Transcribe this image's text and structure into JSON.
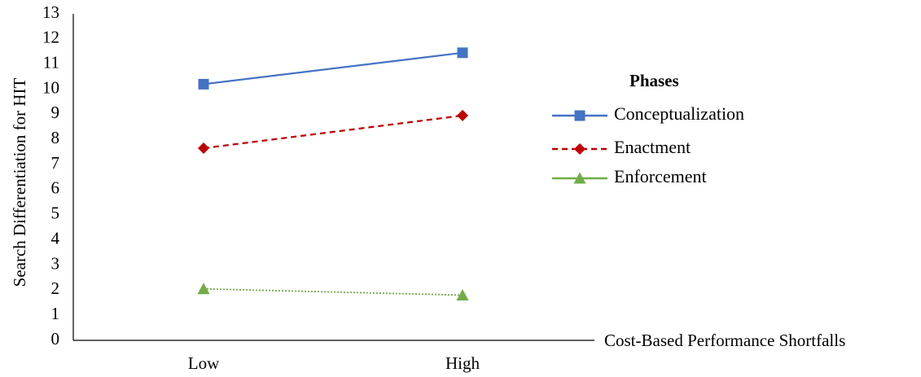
{
  "chart_data": {
    "type": "line",
    "title": "",
    "xlabel": "Cost-Based Performance Shortfalls",
    "ylabel": "Search Differentiation for HIT",
    "categories": [
      "Low",
      "High"
    ],
    "ylim": [
      0,
      13
    ],
    "yticks": [
      "0",
      "1",
      "2",
      "3",
      "4",
      "5",
      "6",
      "7",
      "8",
      "9",
      "10",
      "11",
      "12",
      "13"
    ],
    "grid": false,
    "legend_title": "Phases",
    "legend_position": "right",
    "series": [
      {
        "name": "Conceptualization",
        "values": [
          10.2,
          11.45
        ],
        "color": "#4472C4",
        "marker": "square",
        "line_style": "solid"
      },
      {
        "name": "Enactment",
        "values": [
          7.65,
          8.95
        ],
        "color": "#C00000",
        "marker": "diamond",
        "line_style": "dashed"
      },
      {
        "name": "Enforcement",
        "values": [
          2.05,
          1.8
        ],
        "color": "#70AD47",
        "marker": "triangle",
        "line_style": "dotted"
      }
    ]
  }
}
